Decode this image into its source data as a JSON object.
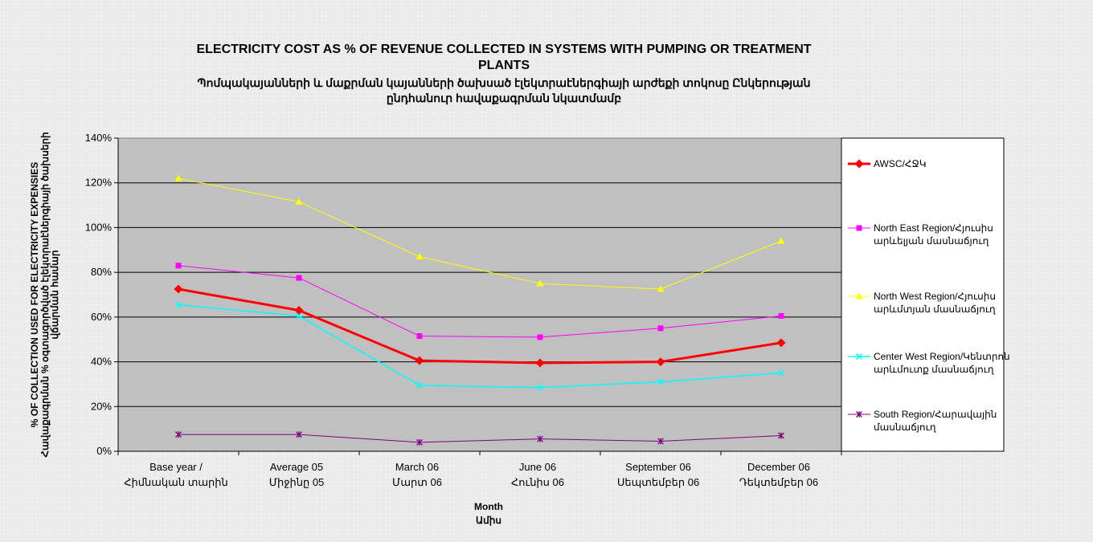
{
  "chart_data": {
    "type": "line",
    "title_lines": [
      "ELECTRICITY COST AS % OF REVENUE COLLECTED IN SYSTEMS WITH PUMPING OR TREATMENT",
      "PLANTS"
    ],
    "subtitle_lines": [
      "Պոմպակայանների և մաքրման կայանների ծախսած էլեկտրաէներգիայի արժեքի տոկոսը Ընկերության",
      "ընդհանուր հավաքագրման նկատմամբ"
    ],
    "ylabel_lines": [
      "% OF COLLECTION USED FOR ELECTRICITY EXPENSIES",
      "Հավաքագրման % օգտագործված էլեկտրաէներգիայի ծախսերի",
      "վճարման համար"
    ],
    "xlabel_lines": [
      "Month",
      "Ամիս"
    ],
    "categories": [
      [
        "Base year /",
        "Հիմնական տարին"
      ],
      [
        "Average 05",
        "Միջինը 05"
      ],
      [
        "March 06",
        "Մարտ 06"
      ],
      [
        "June 06",
        "Հունիս 06"
      ],
      [
        "September 06",
        "Սեպտեմբեր 06"
      ],
      [
        "December 06",
        "Դեկտեմբեր 06"
      ]
    ],
    "y_ticks": [
      "0%",
      "20%",
      "40%",
      "60%",
      "80%",
      "100%",
      "120%",
      "140%"
    ],
    "ylim": [
      0,
      140
    ],
    "grid": "horizontal",
    "legend_position": "right",
    "plot_background": "#c0c0c0",
    "series": [
      {
        "name_lines": [
          "AWSC/ՀՋԿ"
        ],
        "color": "#ff0000",
        "marker": "diamond",
        "width": 3,
        "values": [
          72.5,
          63,
          40.5,
          39.5,
          40,
          48.5
        ]
      },
      {
        "name_lines": [
          "North East Region/Հյուսիս",
          "արևելյան մասնաճյուղ"
        ],
        "color": "#ff00ff",
        "marker": "square",
        "width": 1,
        "values": [
          83,
          77.5,
          51.5,
          51,
          55,
          60.5
        ]
      },
      {
        "name_lines": [
          "North West Region/Հյուսիս",
          "արևմտյան մասնաճյուղ"
        ],
        "color": "#ffff00",
        "marker": "triangle",
        "width": 1,
        "values": [
          122,
          111.5,
          87,
          75,
          72.5,
          94
        ]
      },
      {
        "name_lines": [
          "Center West Region/Կենտրոն",
          "արևմուտք մասնաճյուղ"
        ],
        "color": "#00ffff",
        "marker": "x",
        "width": 1.5,
        "values": [
          65.5,
          60.5,
          29.5,
          28.5,
          31,
          35
        ]
      },
      {
        "name_lines": [
          "South Region/Հարավային",
          "մասնաճյուղ"
        ],
        "color": "#800080",
        "marker": "star",
        "width": 1,
        "values": [
          7.5,
          7.5,
          4,
          5.5,
          4.5,
          7
        ]
      }
    ]
  }
}
